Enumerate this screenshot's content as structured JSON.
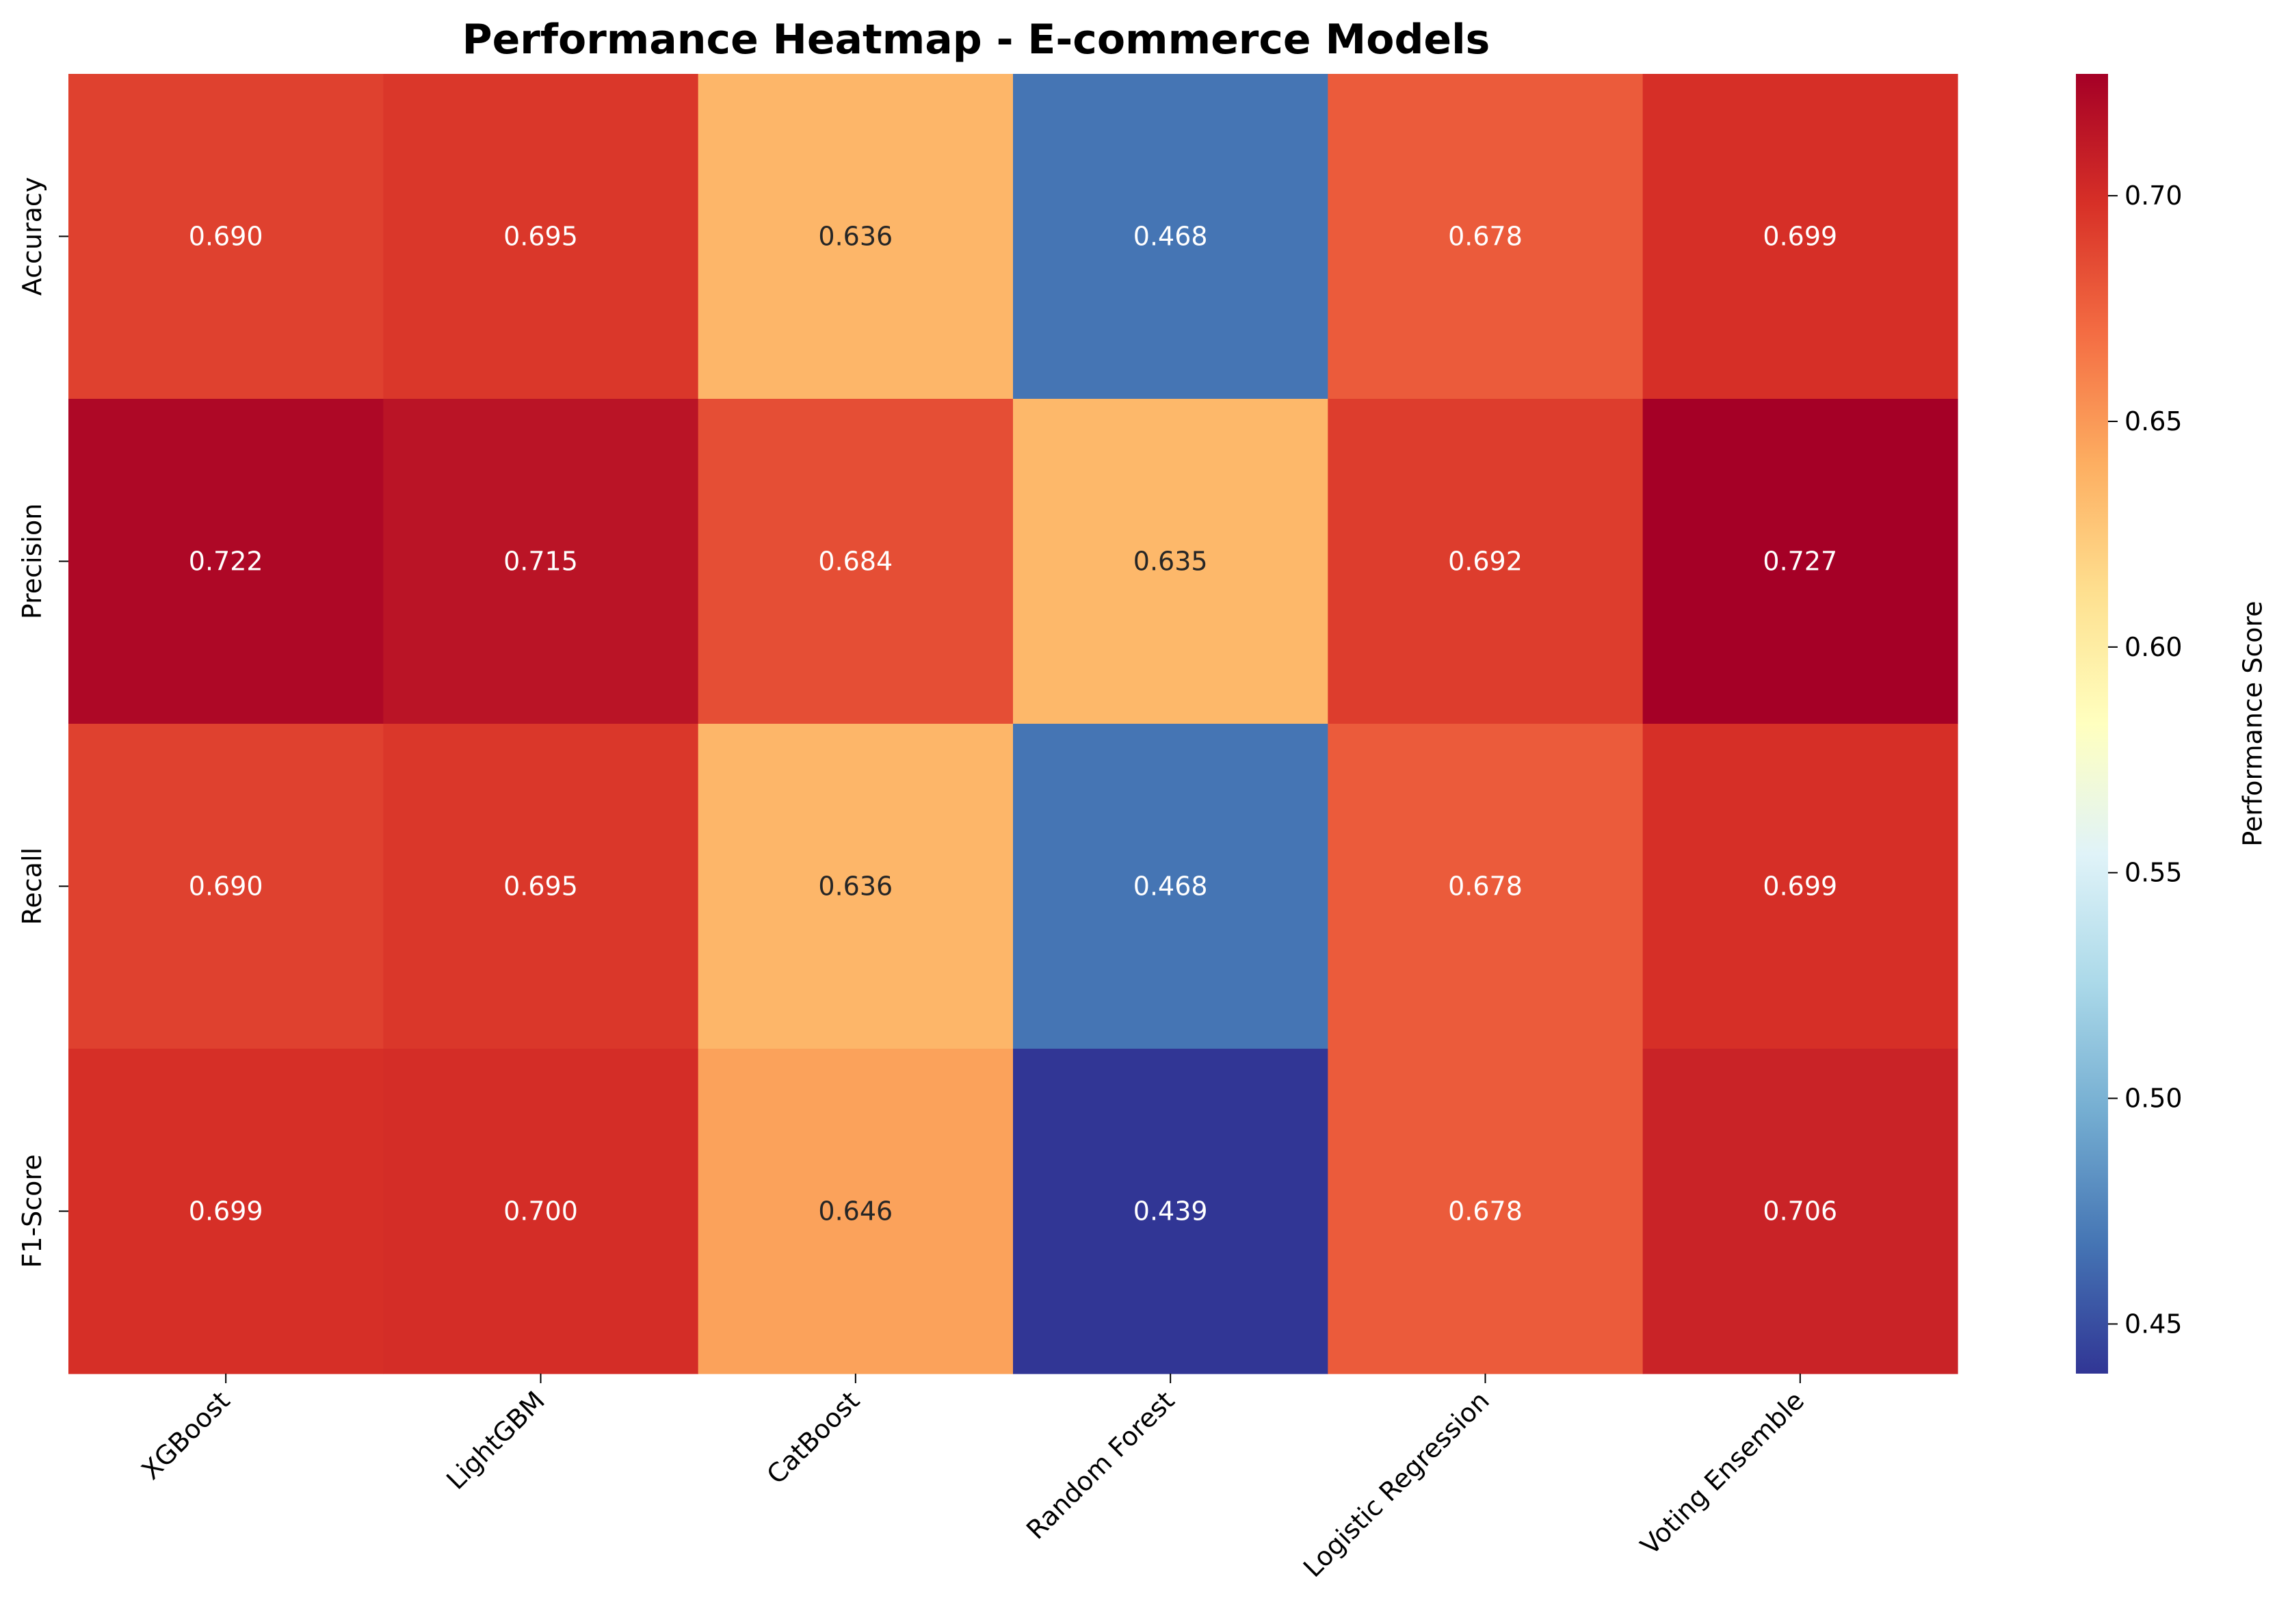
{
  "chart_data": {
    "type": "heatmap",
    "title": "Performance Heatmap - E-commerce Models",
    "x_categories": [
      "XGBoost",
      "LightGBM",
      "CatBoost",
      "Random Forest",
      "Logistic Regression",
      "Voting Ensemble"
    ],
    "y_categories": [
      "Accuracy",
      "Precision",
      "Recall",
      "F1-Score"
    ],
    "values": [
      [
        0.69,
        0.695,
        0.636,
        0.468,
        0.678,
        0.699
      ],
      [
        0.722,
        0.715,
        0.684,
        0.635,
        0.692,
        0.727
      ],
      [
        0.69,
        0.695,
        0.636,
        0.468,
        0.678,
        0.699
      ],
      [
        0.699,
        0.7,
        0.646,
        0.439,
        0.678,
        0.706
      ]
    ],
    "value_labels": [
      [
        "0.690",
        "0.695",
        "0.636",
        "0.468",
        "0.678",
        "0.699"
      ],
      [
        "0.722",
        "0.715",
        "0.684",
        "0.635",
        "0.692",
        "0.727"
      ],
      [
        "0.690",
        "0.695",
        "0.636",
        "0.468",
        "0.678",
        "0.699"
      ],
      [
        "0.699",
        "0.700",
        "0.646",
        "0.439",
        "0.678",
        "0.706"
      ]
    ],
    "colormap": "RdYlBu_r",
    "color_range": [
      0.439,
      0.727
    ],
    "colorbar": {
      "label": "Performance Score",
      "ticks": [
        0.45,
        0.5,
        0.55,
        0.6,
        0.65,
        0.7
      ],
      "tick_labels": [
        "0.45",
        "0.50",
        "0.55",
        "0.60",
        "0.65",
        "0.70"
      ],
      "placement": "right"
    },
    "grid": false
  }
}
